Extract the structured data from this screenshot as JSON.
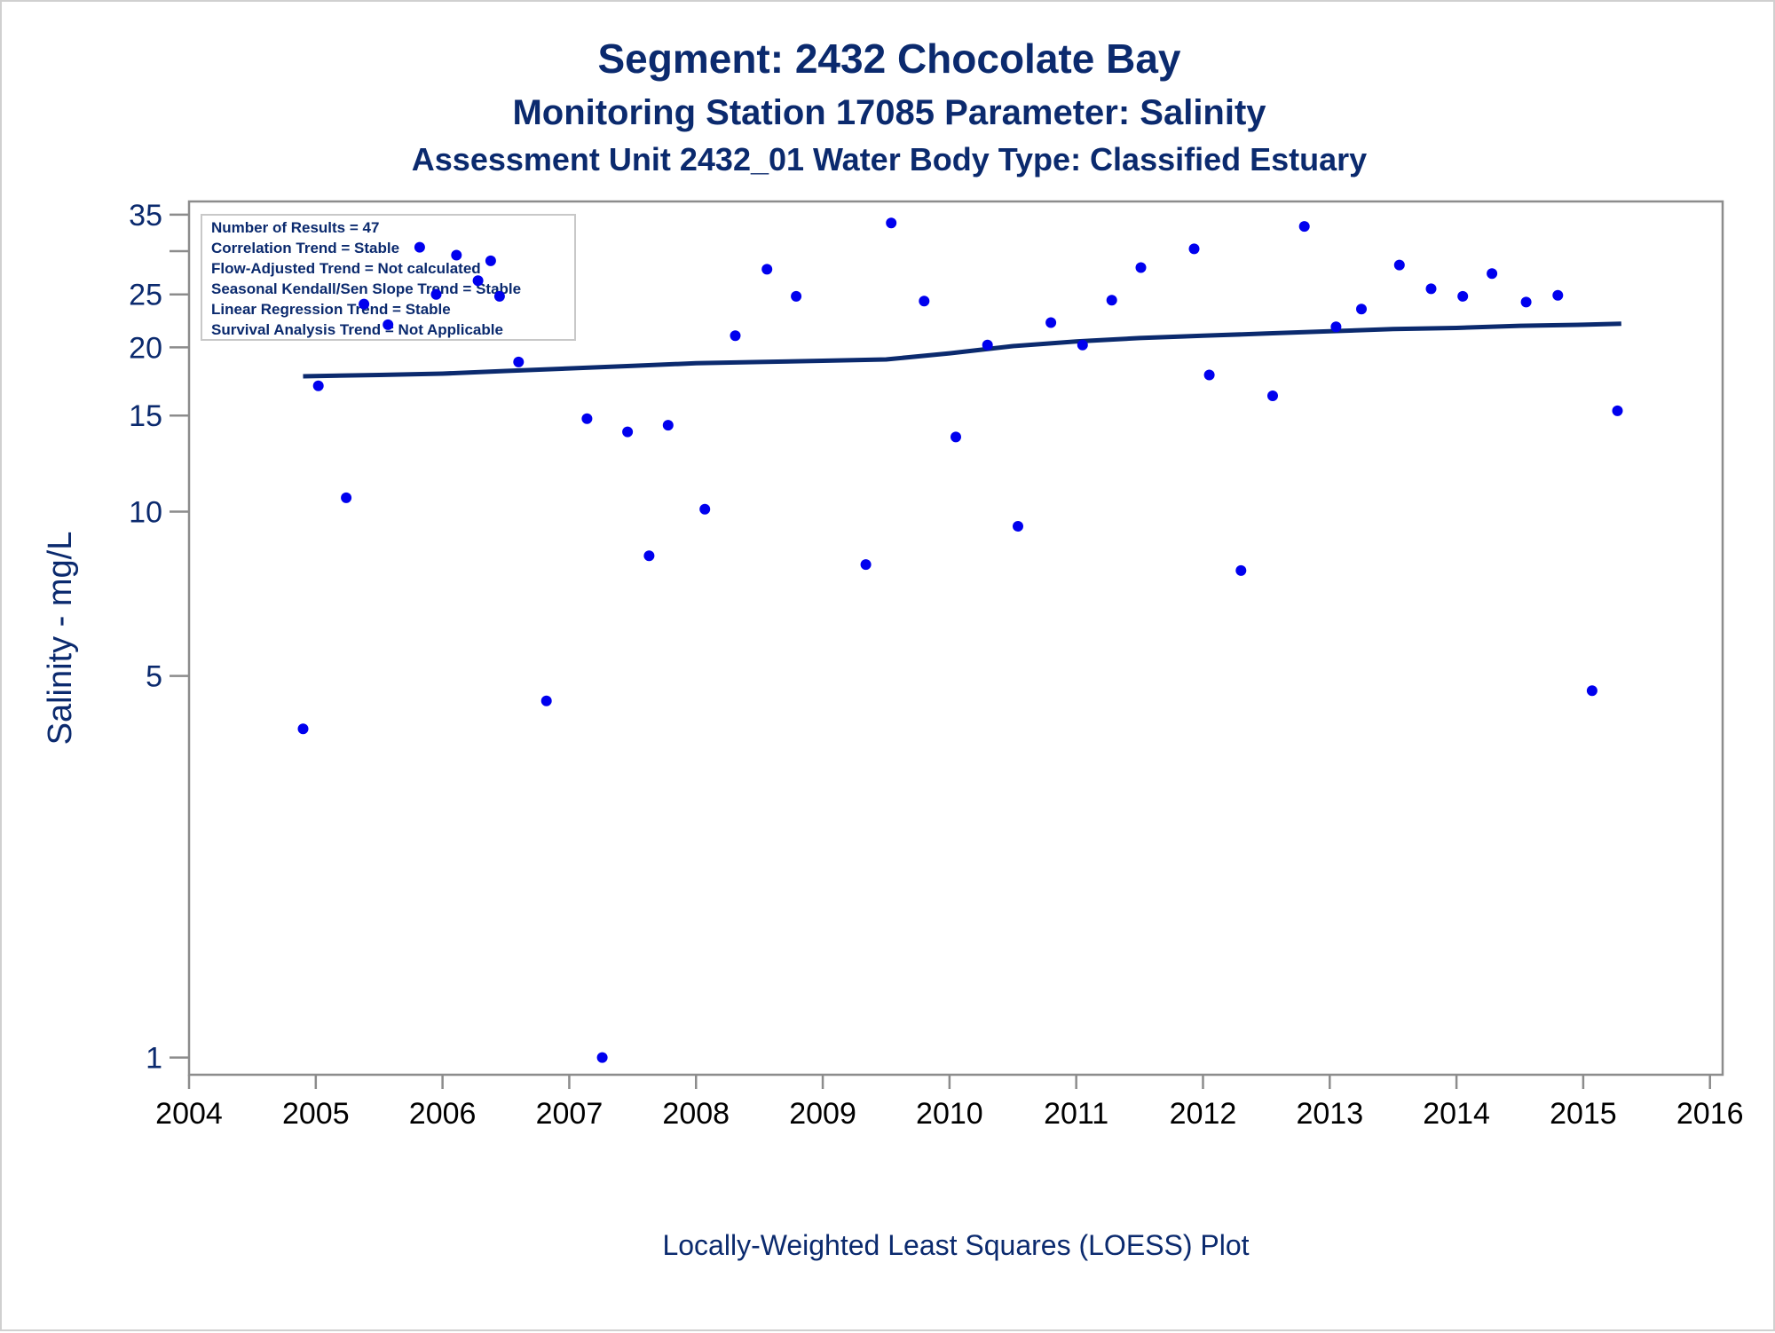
{
  "chart_data": {
    "type": "scatter",
    "title": "Segment: 2432  Chocolate Bay",
    "subtitle": "Monitoring Station 17085 Parameter: Salinity",
    "subtitle2": "Assessment Unit 2432_01   Water Body Type: Classified Estuary",
    "ylabel": "Salinity - mg/L",
    "xlabel": "Locally-Weighted Least Squares (LOESS) Plot",
    "yscale": "log",
    "ylim": [
      0.93,
      37
    ],
    "xlim": [
      2004,
      2016.1
    ],
    "yticks": [
      1,
      5,
      10,
      15,
      20,
      25,
      35
    ],
    "yminor_ticks": [
      30
    ],
    "xticks": [
      "2004",
      "2005",
      "2006",
      "2007",
      "2008",
      "2009",
      "2010",
      "2011",
      "2012",
      "2013",
      "2014",
      "2015",
      "2016"
    ],
    "grid": false,
    "legend": "none",
    "stats_box": [
      "Number of Results = 47",
      "Correlation Trend = Stable",
      "Flow-Adjusted Trend = Not calculated",
      "Seasonal Kendall/Sen Slope Trend = Stable",
      "Linear Regression Trend = Stable",
      "Survival Analysis Trend = Not Applicable"
    ],
    "point_color": "#0000ee",
    "line_color": "#0b2a6e",
    "points": [
      {
        "x": 2004.9,
        "y": 4.0
      },
      {
        "x": 2005.02,
        "y": 17.0
      },
      {
        "x": 2005.24,
        "y": 10.6
      },
      {
        "x": 2005.38,
        "y": 24.0
      },
      {
        "x": 2005.57,
        "y": 22.0
      },
      {
        "x": 2005.82,
        "y": 30.5
      },
      {
        "x": 2005.95,
        "y": 25.0
      },
      {
        "x": 2006.11,
        "y": 29.5
      },
      {
        "x": 2006.28,
        "y": 26.5
      },
      {
        "x": 2006.38,
        "y": 28.8
      },
      {
        "x": 2006.45,
        "y": 24.8
      },
      {
        "x": 2006.6,
        "y": 18.8
      },
      {
        "x": 2006.82,
        "y": 4.5
      },
      {
        "x": 2007.14,
        "y": 14.8
      },
      {
        "x": 2007.26,
        "y": 1.0
      },
      {
        "x": 2007.46,
        "y": 14.0
      },
      {
        "x": 2007.63,
        "y": 8.3
      },
      {
        "x": 2007.78,
        "y": 14.4
      },
      {
        "x": 2008.07,
        "y": 10.1
      },
      {
        "x": 2008.31,
        "y": 21.0
      },
      {
        "x": 2008.56,
        "y": 27.8
      },
      {
        "x": 2008.79,
        "y": 24.8
      },
      {
        "x": 2009.34,
        "y": 8.0
      },
      {
        "x": 2009.54,
        "y": 33.8
      },
      {
        "x": 2009.8,
        "y": 24.3
      },
      {
        "x": 2010.05,
        "y": 13.7
      },
      {
        "x": 2010.3,
        "y": 20.2
      },
      {
        "x": 2010.54,
        "y": 9.4
      },
      {
        "x": 2010.8,
        "y": 22.2
      },
      {
        "x": 2011.05,
        "y": 20.2
      },
      {
        "x": 2011.28,
        "y": 24.4
      },
      {
        "x": 2011.51,
        "y": 28.0
      },
      {
        "x": 2011.93,
        "y": 30.3
      },
      {
        "x": 2012.05,
        "y": 17.8
      },
      {
        "x": 2012.3,
        "y": 7.8
      },
      {
        "x": 2012.55,
        "y": 16.3
      },
      {
        "x": 2012.8,
        "y": 33.3
      },
      {
        "x": 2013.05,
        "y": 21.8
      },
      {
        "x": 2013.25,
        "y": 23.5
      },
      {
        "x": 2013.55,
        "y": 28.3
      },
      {
        "x": 2013.8,
        "y": 25.6
      },
      {
        "x": 2014.05,
        "y": 24.8
      },
      {
        "x": 2014.28,
        "y": 27.3
      },
      {
        "x": 2014.55,
        "y": 24.2
      },
      {
        "x": 2014.8,
        "y": 24.9
      },
      {
        "x": 2015.07,
        "y": 4.7
      },
      {
        "x": 2015.27,
        "y": 15.3
      }
    ],
    "loess": {
      "x": [
        2004.9,
        2005.5,
        2006.0,
        2006.5,
        2007.0,
        2007.5,
        2008.0,
        2008.5,
        2009.0,
        2009.5,
        2010.0,
        2010.5,
        2011.0,
        2011.5,
        2012.0,
        2012.5,
        2013.0,
        2013.5,
        2014.0,
        2014.5,
        2015.0,
        2015.3
      ],
      "y": [
        17.7,
        17.8,
        17.9,
        18.1,
        18.3,
        18.5,
        18.7,
        18.8,
        18.9,
        19.0,
        19.5,
        20.1,
        20.5,
        20.8,
        21.0,
        21.2,
        21.4,
        21.6,
        21.7,
        21.9,
        22.0,
        22.1
      ]
    }
  }
}
